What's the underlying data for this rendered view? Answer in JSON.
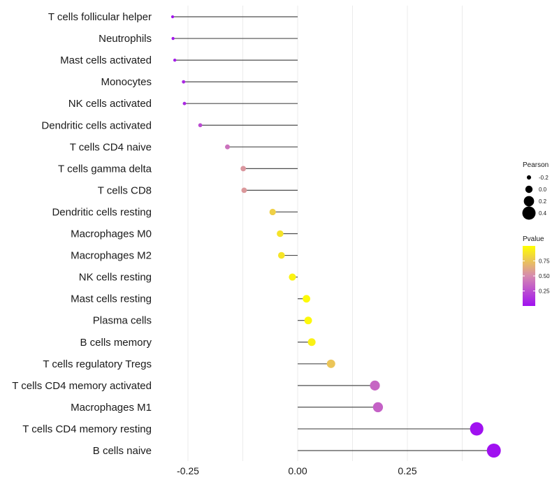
{
  "chart_data": {
    "type": "lollipop",
    "title": "",
    "xlabel": "",
    "ylabel": "",
    "xlim": [
      -0.29,
      0.48
    ],
    "xticks": [
      -0.25,
      0.0,
      0.25
    ],
    "xtick_labels": [
      "-0.25",
      "0.00",
      "0.25"
    ],
    "categories": [
      "T cells follicular helper",
      "Neutrophils",
      "Mast cells activated",
      "Monocytes",
      "NK cells activated",
      "Dendritic cells activated",
      "T cells CD4 naive",
      "T cells gamma delta",
      "T cells CD8",
      "Dendritic cells resting",
      "Macrophages M0",
      "Macrophages M2",
      "NK cells resting",
      "Mast cells resting",
      "Plasma cells",
      "B cells memory",
      "T cells regulatory  Tregs",
      "T cells CD4 memory activated",
      "Macrophages M1",
      "T cells CD4 memory resting",
      "B cells naive"
    ],
    "pearson": [
      -0.285,
      -0.284,
      -0.28,
      -0.26,
      -0.258,
      -0.222,
      -0.16,
      -0.124,
      -0.122,
      -0.057,
      -0.04,
      -0.037,
      -0.012,
      0.02,
      0.024,
      0.032,
      0.076,
      0.176,
      0.183,
      0.408,
      0.447
    ],
    "pvalue": [
      0.02,
      0.03,
      0.05,
      0.1,
      0.1,
      0.24,
      0.4,
      0.55,
      0.56,
      0.8,
      0.88,
      0.89,
      0.95,
      0.98,
      0.97,
      0.94,
      0.75,
      0.35,
      0.33,
      0.0,
      0.0
    ],
    "legend_size": {
      "title": "Pearson",
      "labels": [
        "-0.2",
        "0.0",
        "0.2",
        "0.4"
      ],
      "values": [
        -0.2,
        0.0,
        0.2,
        0.4
      ]
    },
    "legend_color": {
      "title": "Pvalue",
      "labels": [
        "0.75",
        "0.50",
        "0.25"
      ],
      "values": [
        0.75,
        0.5,
        0.25
      ],
      "range": [
        0.0,
        1.0
      ],
      "colors": [
        "#a011f0",
        "#d68ab0",
        "#ffff00"
      ]
    },
    "grid": true,
    "legend_position": "right"
  }
}
